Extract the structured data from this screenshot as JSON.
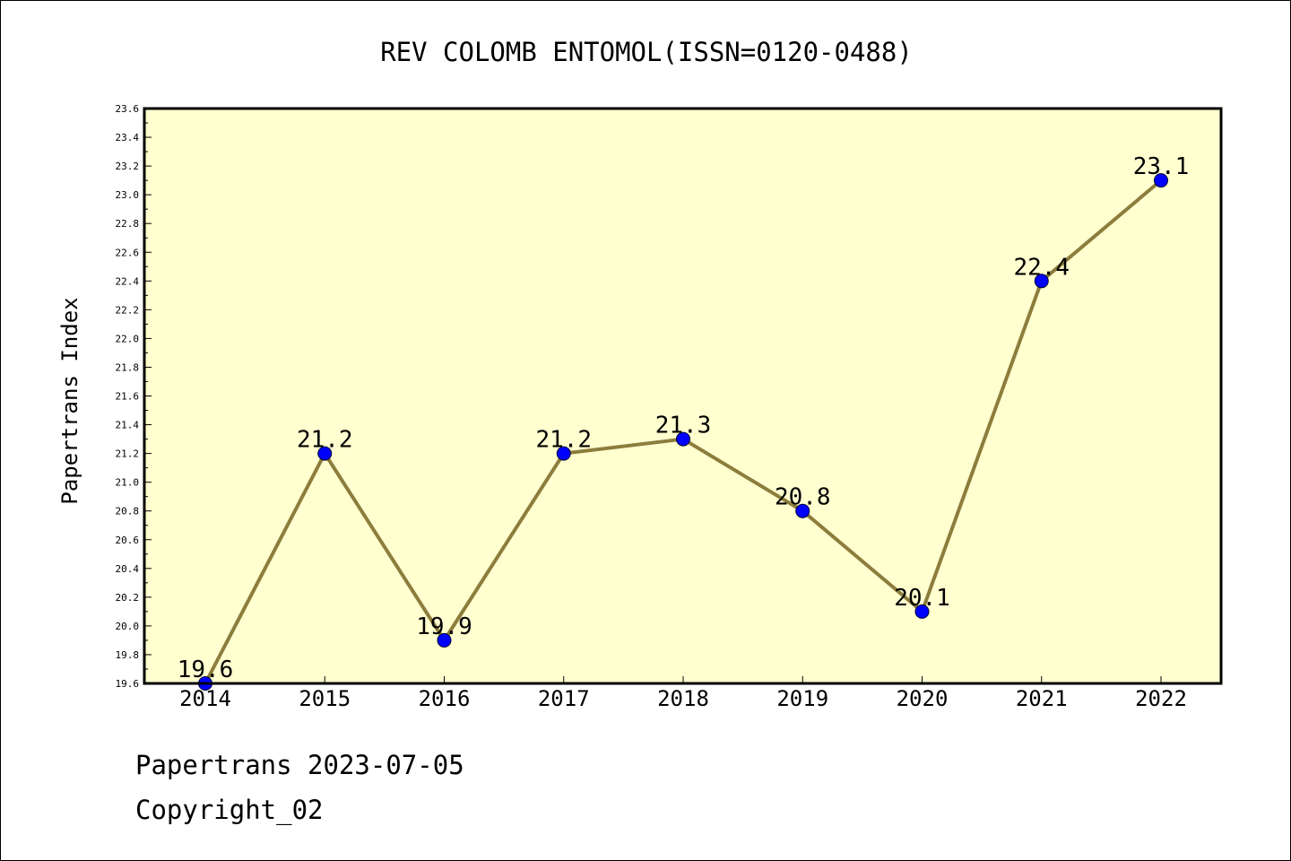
{
  "chart_data": {
    "type": "line",
    "title": "REV COLOMB ENTOMOL(ISSN=0120-0488)",
    "xlabel": "",
    "ylabel": "Papertrans Index",
    "x": [
      "2014",
      "2015",
      "2016",
      "2017",
      "2018",
      "2019",
      "2020",
      "2021",
      "2022"
    ],
    "series": [
      {
        "values": [
          19.6,
          21.2,
          19.9,
          21.2,
          21.3,
          20.8,
          20.1,
          22.4,
          23.1
        ],
        "labels": [
          "19.6",
          "21.2",
          "19.9",
          "21.2",
          "21.3",
          "20.8",
          "20.1",
          "22.4",
          "23.1"
        ]
      }
    ],
    "ylim": [
      19.6,
      23.6
    ],
    "yticks": [
      "19.6",
      "19.8",
      "20.0",
      "20.2",
      "20.4",
      "20.6",
      "20.8",
      "21.0",
      "21.2",
      "21.4",
      "21.6",
      "21.8",
      "22.0",
      "22.2",
      "22.4",
      "22.6",
      "22.8",
      "23.0",
      "23.2",
      "23.4",
      "23.6"
    ],
    "grid": false,
    "legend": "none",
    "colors": {
      "plot_background": "#ffffd0",
      "line": "#8c7d3c",
      "marker": "#0000ff"
    }
  },
  "footer": {
    "date_line": "Papertrans 2023-07-05",
    "copyright_line": "Copyright_02"
  }
}
